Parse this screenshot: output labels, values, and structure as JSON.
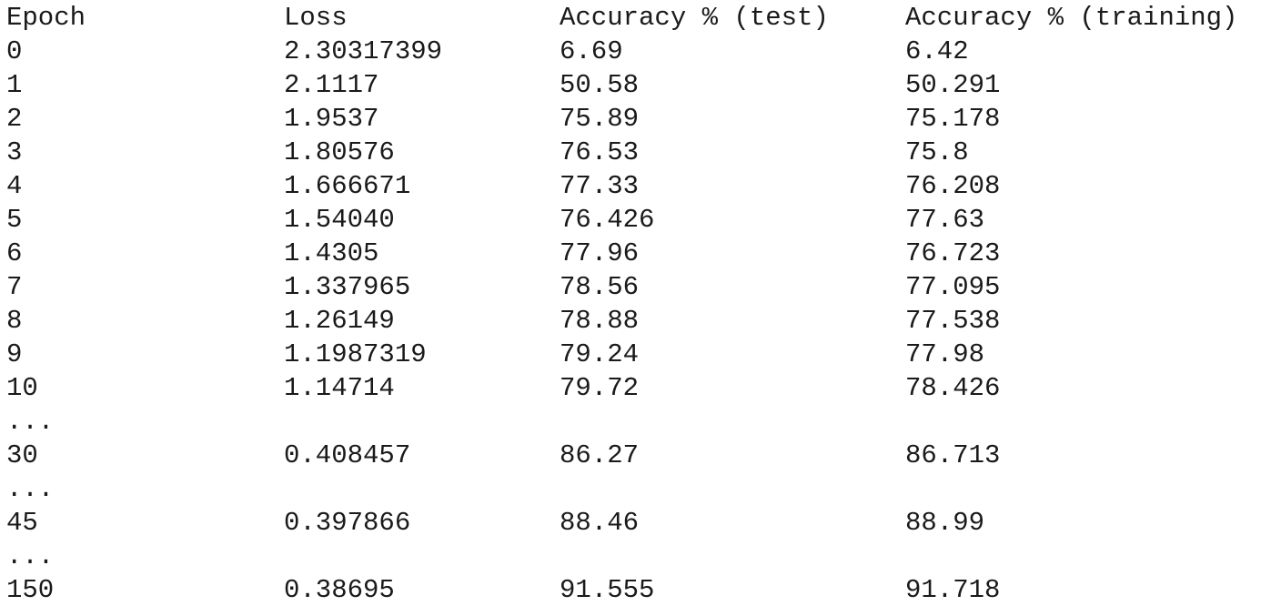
{
  "headers": [
    "Epoch",
    "Loss",
    "Accuracy % (test)",
    "Accuracy % (training)"
  ],
  "rows": [
    [
      "0",
      "2.30317399",
      "6.69",
      "6.42"
    ],
    [
      "1",
      "2.1117",
      "50.58",
      "50.291"
    ],
    [
      "2",
      "1.9537",
      "75.89",
      "75.178"
    ],
    [
      "3",
      "1.80576",
      "76.53",
      "75.8"
    ],
    [
      "4",
      "1.666671",
      "77.33",
      "76.208"
    ],
    [
      "5",
      "1.54040",
      "76.426",
      "77.63"
    ],
    [
      "6",
      "1.4305",
      "77.96",
      "76.723"
    ],
    [
      "7",
      "1.337965",
      "78.56",
      "77.095"
    ],
    [
      "8",
      "1.26149",
      "78.88",
      "77.538"
    ],
    [
      "9",
      "1.1987319",
      "79.24",
      "77.98"
    ],
    [
      "10",
      "1.14714",
      "79.72",
      "78.426"
    ],
    [
      "...",
      "",
      "",
      ""
    ],
    [
      "30",
      "0.408457",
      "86.27",
      "86.713"
    ],
    [
      "...",
      "",
      "",
      ""
    ],
    [
      "45",
      "0.397866",
      "88.46",
      "88.99"
    ],
    [
      "...",
      "",
      "",
      ""
    ],
    [
      "150",
      "0.38695",
      "91.555",
      "91.718"
    ]
  ]
}
